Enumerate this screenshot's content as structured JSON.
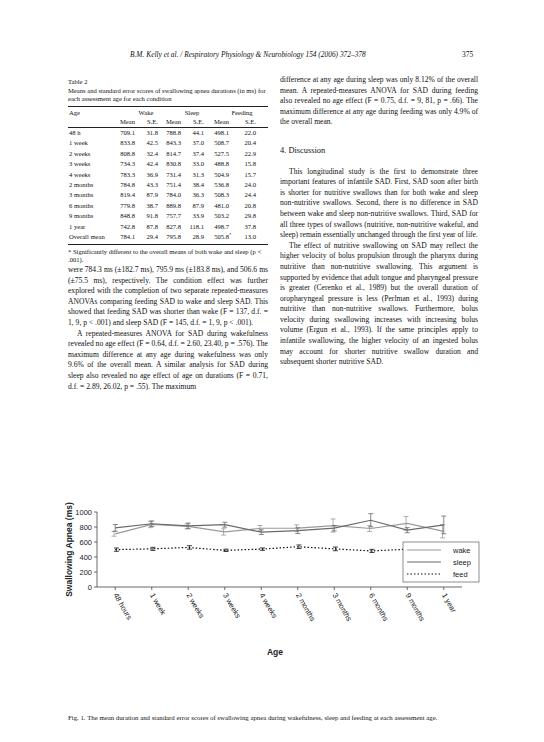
{
  "header": {
    "running_title": "B.M. Kelly et al. / Respiratory Physiology & Neurobiology 154 (2006) 372–378",
    "page_number": "375"
  },
  "table": {
    "label": "Table 2",
    "title": "Means and standard error scores of swallowing apnea durations (in ms) for each assessment age for each condition",
    "group_headers": [
      "Age",
      "Wake",
      "Sleep",
      "Feeding"
    ],
    "sub_headers": [
      "Mean",
      "S.E.",
      "Mean",
      "S.E.",
      "Mean",
      "S.E."
    ],
    "rows": [
      [
        "48 h",
        "709.1",
        "31.8",
        "788.8",
        "44.1",
        "498.1",
        "22.0"
      ],
      [
        "1 week",
        "833.8",
        "42.5",
        "843.3",
        "37.0",
        "508.7",
        "20.4"
      ],
      [
        "2 weeks",
        "808.8",
        "32.4",
        "814.7",
        "37.4",
        "527.5",
        "22.9"
      ],
      [
        "3 weeks",
        "734.3",
        "42.4",
        "830.8",
        "33.0",
        "488.8",
        "15.8"
      ],
      [
        "4 weeks",
        "783.3",
        "36.9",
        "731.4",
        "31.3",
        "504.9",
        "15.7"
      ],
      [
        "2 months",
        "784.8",
        "43.3",
        "751.4",
        "38.4",
        "536.8",
        "24.0"
      ],
      [
        "3 months",
        "819.4",
        "87.9",
        "784.0",
        "36.3",
        "508.3",
        "24.4"
      ],
      [
        "6 months",
        "779.8",
        "38.7",
        "889.8",
        "87.9",
        "481.0",
        "20.8"
      ],
      [
        "9 months",
        "848.8",
        "91.8",
        "757.7",
        "33.9",
        "503.2",
        "29.8"
      ],
      [
        "1 year",
        "742.8",
        "87.8",
        "827.8",
        "118.1",
        "498.7",
        "37.8"
      ],
      [
        "Overall mean",
        "784.1",
        "29.4",
        "795.8",
        "28.9",
        "505.8*",
        "13.0"
      ]
    ],
    "footnote": "* Significantly different to the overall means of both wake and sleep (p < .001)."
  },
  "left_column": {
    "paragraphs": [
      "were 784.3 ms (±182.7 ms), 795.9 ms (±183.8 ms), and 506.6 ms (±75.5 ms), respectively. The condition effect was further explored with the completion of two separate repeated-measures ANOVAs comparing feeding SAD to wake and sleep SAD. This showed that feeding SAD was shorter than wake (F = 137, d.f. = 1, 9, p < .001) and sleep SAD (F = 145, d.f. = 1, 9, p < .001).",
      "A repeated-measures ANOVA for SAD during wakefulness revealed no age effect (F = 0.64, d.f. = 2.60, 23.40, p = .576). The maximum difference at any age during wakefulness was only 9.6% of the overall mean. A similar analysis for SAD during sleep also revealed no age effect of age on durations (F = 0.71, d.f. = 2.89, 26.02, p = .55). The maximum"
    ]
  },
  "right_column": {
    "intro": "difference at any age during sleep was only 8.12% of the overall mean. A repeated-measures ANOVA for SAD during feeding also revealed no age effect (F = 0.75, d.f. = 9, 81, p = .66). The maximum difference at any age during feeding was only 4.9% of the overall mean.",
    "heading": "4. Discussion",
    "paragraphs": [
      "This longitudinal study is the first to demonstrate three important features of infantile SAD. First, SAD soon after birth is shorter for nutritive swallows than for both wake and sleep non-nutritive swallows. Second, there is no difference in SAD between wake and sleep non-nutritive swallows. Third, SAD for all three types of swallows (nutritive, non-nutritive wakeful, and sleep) remain essentially unchanged through the first year of life.",
      "The effect of nutritive swallowing on SAD may reflect the higher velocity of bolus propulsion through the pharynx during nutritive than non-nutritive swallowing. This argument is supported by evidence that adult tongue and pharyngeal pressure is greater (Cerenko et al., 1989) but the overall duration of oropharyngeal pressure is less (Perlman et al., 1993) during nutritive than non-nutritive swallows. Furthermore, bolus velocity during swallowing increases with increasing bolus volume (Ergun et al., 1993). If the same principles apply to infantile swallowing, the higher velocity of an ingested bolus may account for shorter nutritive swallow duration and subsequent shorter nutritive SAD."
    ]
  },
  "chart_data": {
    "type": "line",
    "x_label": "Age",
    "y_label": "Swallowing Apnea (ms)",
    "categories": [
      "48 hours",
      "1 week",
      "2 weeks",
      "3 weeks",
      "4 weeks",
      "2 months",
      "3 months",
      "6 months",
      "9 months",
      "1 year"
    ],
    "series": [
      {
        "name": "wake",
        "color": "#9a9a9a",
        "line_style": "solid",
        "values": [
          709.1,
          833.8,
          808.8,
          734.3,
          783.3,
          784.8,
          819.4,
          779.8,
          848.8,
          742.8
        ],
        "errors": [
          31.8,
          42.5,
          32.4,
          42.4,
          36.9,
          43.3,
          87.9,
          38.7,
          91.8,
          87.8
        ]
      },
      {
        "name": "sleep",
        "color": "#6a6a6a",
        "line_style": "solid",
        "values": [
          788.8,
          843.3,
          814.7,
          830.8,
          731.4,
          751.4,
          784.0,
          889.8,
          757.7,
          827.8
        ],
        "errors": [
          44.1,
          37.0,
          37.4,
          33.0,
          31.3,
          38.4,
          36.3,
          87.9,
          33.9,
          118.1
        ]
      },
      {
        "name": "feed",
        "color": "#111111",
        "line_style": "dotted",
        "values": [
          498.1,
          508.7,
          527.5,
          488.8,
          504.9,
          536.8,
          508.3,
          481.0,
          503.2,
          498.7
        ],
        "errors": [
          22.0,
          20.4,
          22.9,
          15.8,
          15.7,
          24.0,
          24.4,
          20.8,
          29.8,
          37.8
        ]
      }
    ],
    "ylim": [
      0,
      1000
    ],
    "yticks": [
      0,
      200,
      400,
      600,
      800,
      1000
    ],
    "grid": false,
    "legend": "right"
  },
  "caption": "Fig. 1. The mean duration and standard error scores of swallowing apnea during wakefulness, sleep and feeding at each assessment age."
}
